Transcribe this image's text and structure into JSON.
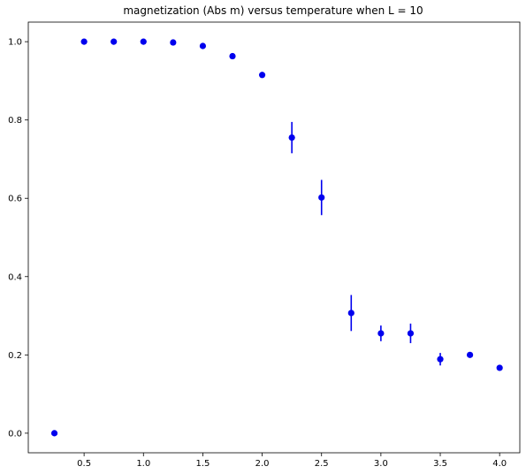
{
  "chart_data": {
    "type": "scatter",
    "title": "magnetization (Abs m) versus temperature when L = 10",
    "xlabel": "",
    "ylabel": "",
    "xlim": [
      0.03,
      4.17
    ],
    "ylim": [
      -0.05,
      1.05
    ],
    "x_ticks": [
      0.5,
      1.0,
      1.5,
      2.0,
      2.5,
      3.0,
      3.5,
      4.0
    ],
    "y_ticks": [
      0.0,
      0.2,
      0.4,
      0.6,
      0.8,
      1.0
    ],
    "grid": false,
    "legend": "none",
    "marker": "circle",
    "error_bars": "vertical",
    "series": [
      {
        "color": "#0000ee",
        "points": [
          {
            "x": 0.25,
            "y": 0.0,
            "err": 0.0
          },
          {
            "x": 0.5,
            "y": 1.0,
            "err": 0.0
          },
          {
            "x": 0.75,
            "y": 1.0,
            "err": 0.0
          },
          {
            "x": 1.0,
            "y": 1.0,
            "err": 0.0
          },
          {
            "x": 1.25,
            "y": 0.998,
            "err": 0.0
          },
          {
            "x": 1.5,
            "y": 0.989,
            "err": 0.003
          },
          {
            "x": 1.75,
            "y": 0.963,
            "err": 0.005
          },
          {
            "x": 2.0,
            "y": 0.915,
            "err": 0.007
          },
          {
            "x": 2.25,
            "y": 0.755,
            "err": 0.04
          },
          {
            "x": 2.5,
            "y": 0.602,
            "err": 0.045
          },
          {
            "x": 2.75,
            "y": 0.307,
            "err": 0.046
          },
          {
            "x": 3.0,
            "y": 0.255,
            "err": 0.02
          },
          {
            "x": 3.25,
            "y": 0.255,
            "err": 0.025
          },
          {
            "x": 3.5,
            "y": 0.189,
            "err": 0.016
          },
          {
            "x": 3.75,
            "y": 0.2,
            "err": 0.0
          },
          {
            "x": 4.0,
            "y": 0.167,
            "err": 0.004
          }
        ]
      }
    ]
  }
}
